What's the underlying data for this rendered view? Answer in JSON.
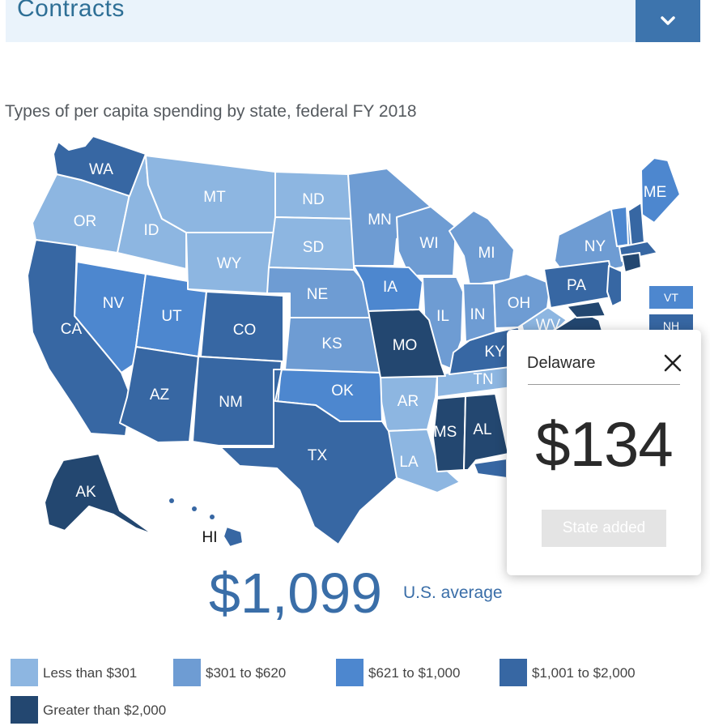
{
  "header": {
    "title": "Contracts",
    "toggle_icon": "chevron-down-icon"
  },
  "subtitle": "Types of per capita spending by state, federal FY 2018",
  "colors": {
    "tier1": "#8db6e1",
    "tier2": "#6e9cd3",
    "tier3": "#4d87cf",
    "tier4": "#3767a3",
    "tier5": "#234770"
  },
  "map_labels": {
    "WA": "WA",
    "OR": "OR",
    "CA": "CA",
    "ID": "ID",
    "NV": "NV",
    "MT": "MT",
    "WY": "WY",
    "UT": "UT",
    "AZ": "AZ",
    "CO": "CO",
    "NM": "NM",
    "ND": "ND",
    "SD": "SD",
    "NE": "NE",
    "KS": "KS",
    "OK": "OK",
    "TX": "TX",
    "MN": "MN",
    "IA": "IA",
    "MO": "MO",
    "AR": "AR",
    "LA": "LA",
    "WI": "WI",
    "IL": "IL",
    "MI": "MI",
    "IN": "IN",
    "OH": "OH",
    "KY": "KY",
    "TN": "TN",
    "MS": "MS",
    "AL": "AL",
    "WV": "WV",
    "PA": "PA",
    "NY": "NY",
    "ME": "ME",
    "AK": "AK",
    "HI": "HI"
  },
  "side_boxes": {
    "vt": "VT",
    "nh": "NH"
  },
  "popup": {
    "state": "Delaware",
    "value": "$134",
    "button": "State added",
    "close_icon": "close-icon"
  },
  "average": {
    "value": "$1,099",
    "label": "U.S. average"
  },
  "legend": [
    {
      "label": "Less than $301",
      "color": "#8db6e1"
    },
    {
      "label": "$301 to $620",
      "color": "#6e9cd3"
    },
    {
      "label": "$621 to $1,000",
      "color": "#4d87cf"
    },
    {
      "label": "$1,001 to $2,000",
      "color": "#3767a3"
    },
    {
      "label": "Greater than $2,000",
      "color": "#234770"
    }
  ]
}
